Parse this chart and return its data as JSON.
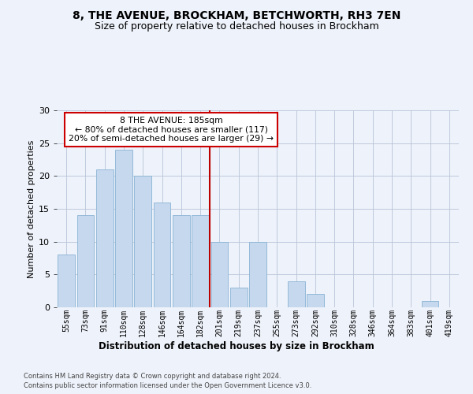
{
  "title1": "8, THE AVENUE, BROCKHAM, BETCHWORTH, RH3 7EN",
  "title2": "Size of property relative to detached houses in Brockham",
  "xlabel": "Distribution of detached houses by size in Brockham",
  "ylabel": "Number of detached properties",
  "categories": [
    "55sqm",
    "73sqm",
    "91sqm",
    "110sqm",
    "128sqm",
    "146sqm",
    "164sqm",
    "182sqm",
    "201sqm",
    "219sqm",
    "237sqm",
    "255sqm",
    "273sqm",
    "292sqm",
    "310sqm",
    "328sqm",
    "346sqm",
    "364sqm",
    "383sqm",
    "401sqm",
    "419sqm"
  ],
  "values": [
    8,
    14,
    21,
    24,
    20,
    16,
    14,
    14,
    10,
    3,
    10,
    0,
    4,
    2,
    0,
    0,
    0,
    0,
    0,
    1,
    0
  ],
  "bar_color": "#c5d8ed",
  "bar_edge_color": "#8ab4d4",
  "vline_x_idx": 7,
  "vline_color": "#bb0000",
  "annotation_line1": "8 THE AVENUE: 185sqm",
  "annotation_line2": "← 80% of detached houses are smaller (117)",
  "annotation_line3": "20% of semi-detached houses are larger (29) →",
  "ylim": [
    0,
    30
  ],
  "yticks": [
    0,
    5,
    10,
    15,
    20,
    25,
    30
  ],
  "footer1": "Contains HM Land Registry data © Crown copyright and database right 2024.",
  "footer2": "Contains public sector information licensed under the Open Government Licence v3.0.",
  "bg_color": "#eef2fa",
  "plot_bg_color": "#eef2fa"
}
